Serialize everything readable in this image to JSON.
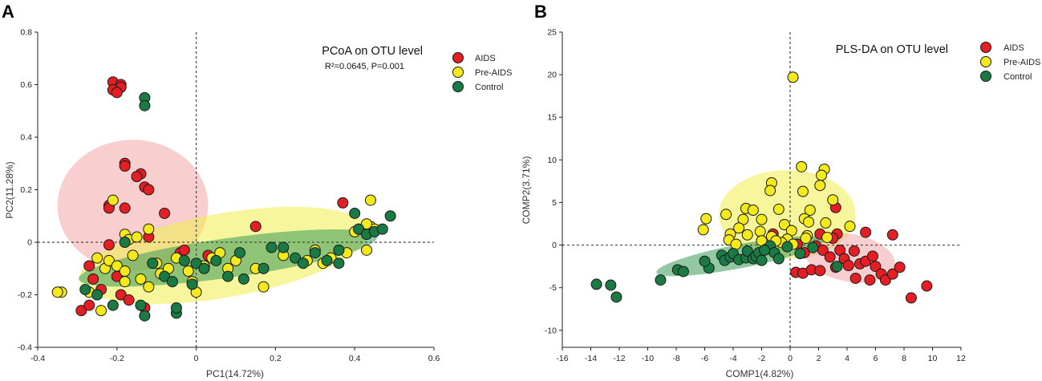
{
  "colors": {
    "AIDS": "#e31e25",
    "Pre-AIDS": "#f4e91a",
    "Control": "#1a7a43"
  },
  "ellipse_colors": {
    "AIDS": "#f4a6a6",
    "Pre-AIDS": "#f1ee4a",
    "Control": "#3a9a5a"
  },
  "chart_data": [
    {
      "panel": "A",
      "type": "scatter",
      "title": "PCoA on OTU level",
      "subtitle": "R²=0.0645, P=0.001",
      "xlabel": "PC1(14.72%)",
      "ylabel": "PC2(11.28%)",
      "xlim": [
        -0.4,
        0.6
      ],
      "ylim": [
        -0.4,
        0.8
      ],
      "xticks": [
        -0.4,
        -0.2,
        0,
        0.2,
        0.4,
        0.6
      ],
      "yticks": [
        -0.4,
        -0.2,
        0,
        0.2,
        0.4,
        0.6,
        0.8
      ],
      "xtick_labels": [
        "-0.4",
        "-0.2",
        "0",
        "0.2",
        "0.4",
        "0.6"
      ],
      "ytick_labels": [
        "-0.4",
        "-0.2",
        "0",
        "0.2",
        "0.4",
        "0.6",
        "0.8"
      ],
      "legend": [
        "AIDS",
        "Pre-AIDS",
        "Control"
      ],
      "legend_position": "top-right",
      "ellipses": [
        {
          "group": "AIDS",
          "cx": -0.16,
          "cy": 0.14,
          "rx": 0.19,
          "ry": 0.25,
          "angle": 0
        },
        {
          "group": "Pre-AIDS",
          "cx": 0.07,
          "cy": -0.05,
          "rx": 0.37,
          "ry": 0.16,
          "angle": 10
        },
        {
          "group": "Control",
          "cx": 0.08,
          "cy": -0.06,
          "rx": 0.38,
          "ry": 0.075,
          "angle": 8
        }
      ],
      "series": [
        {
          "name": "AIDS",
          "points": [
            [
              -0.21,
              0.61
            ],
            [
              -0.19,
              0.6
            ],
            [
              -0.19,
              0.59
            ],
            [
              -0.21,
              0.58
            ],
            [
              -0.2,
              0.57
            ],
            [
              -0.18,
              0.3
            ],
            [
              -0.18,
              0.29
            ],
            [
              -0.14,
              0.26
            ],
            [
              -0.15,
              0.25
            ],
            [
              -0.13,
              0.21
            ],
            [
              -0.12,
              0.2
            ],
            [
              -0.22,
              0.14
            ],
            [
              -0.18,
              0.13
            ],
            [
              -0.22,
              0.13
            ],
            [
              -0.08,
              0.11
            ],
            [
              -0.22,
              -0.01
            ],
            [
              -0.12,
              0.02
            ],
            [
              -0.04,
              -0.04
            ],
            [
              -0.03,
              -0.03
            ],
            [
              0.03,
              -0.05
            ],
            [
              0.15,
              0.06
            ],
            [
              0.37,
              0.15
            ],
            [
              -0.27,
              -0.09
            ],
            [
              -0.26,
              -0.14
            ],
            [
              -0.2,
              -0.13
            ],
            [
              -0.19,
              -0.2
            ],
            [
              -0.24,
              -0.18
            ],
            [
              -0.29,
              -0.26
            ],
            [
              -0.27,
              -0.24
            ],
            [
              -0.17,
              -0.22
            ],
            [
              -0.13,
              -0.25
            ]
          ]
        },
        {
          "name": "Pre-AIDS",
          "points": [
            [
              -0.21,
              0.16
            ],
            [
              -0.18,
              0.03
            ],
            [
              -0.17,
              0.01
            ],
            [
              -0.15,
              0.02
            ],
            [
              -0.12,
              0.05
            ],
            [
              -0.25,
              -0.06
            ],
            [
              -0.23,
              -0.1
            ],
            [
              -0.22,
              -0.07
            ],
            [
              -0.2,
              -0.09
            ],
            [
              -0.18,
              -0.11
            ],
            [
              -0.16,
              -0.05
            ],
            [
              -0.14,
              -0.14
            ],
            [
              -0.12,
              -0.17
            ],
            [
              -0.1,
              -0.08
            ],
            [
              -0.09,
              -0.12
            ],
            [
              -0.07,
              -0.1
            ],
            [
              -0.05,
              -0.06
            ],
            [
              -0.02,
              -0.11
            ],
            [
              -0.01,
              -0.15
            ],
            [
              0.0,
              -0.19
            ],
            [
              0.02,
              -0.09
            ],
            [
              0.04,
              -0.06
            ],
            [
              0.06,
              -0.04
            ],
            [
              0.08,
              -0.1
            ],
            [
              0.1,
              -0.07
            ],
            [
              -0.34,
              -0.19
            ],
            [
              -0.35,
              -0.19
            ],
            [
              -0.27,
              -0.19
            ],
            [
              -0.24,
              -0.26
            ],
            [
              -0.18,
              -0.15
            ],
            [
              0.15,
              -0.1
            ],
            [
              0.17,
              -0.17
            ],
            [
              0.22,
              -0.05
            ],
            [
              0.28,
              -0.07
            ],
            [
              0.3,
              -0.03
            ],
            [
              0.32,
              -0.08
            ],
            [
              0.34,
              -0.06
            ],
            [
              0.38,
              -0.04
            ],
            [
              0.4,
              0.04
            ],
            [
              0.42,
              0.05
            ],
            [
              0.44,
              0.06
            ],
            [
              0.45,
              0.05
            ],
            [
              0.43,
              -0.03
            ],
            [
              0.44,
              0.16
            ],
            [
              0.43,
              0.07
            ]
          ]
        },
        {
          "name": "Control",
          "points": [
            [
              -0.13,
              0.55
            ],
            [
              -0.13,
              0.52
            ],
            [
              -0.18,
              0.0
            ],
            [
              -0.11,
              -0.08
            ],
            [
              -0.08,
              -0.13
            ],
            [
              -0.06,
              -0.15
            ],
            [
              -0.01,
              -0.16
            ],
            [
              0.0,
              -0.08
            ],
            [
              0.05,
              -0.07
            ],
            [
              0.08,
              -0.13
            ],
            [
              0.11,
              -0.04
            ],
            [
              0.12,
              -0.14
            ],
            [
              0.17,
              -0.1
            ],
            [
              0.19,
              -0.02
            ],
            [
              0.22,
              -0.02
            ],
            [
              0.25,
              -0.06
            ],
            [
              0.27,
              -0.08
            ],
            [
              0.3,
              -0.04
            ],
            [
              0.33,
              -0.07
            ],
            [
              0.36,
              -0.08
            ],
            [
              0.41,
              0.05
            ],
            [
              0.43,
              0.03
            ],
            [
              0.45,
              0.04
            ],
            [
              0.47,
              0.05
            ],
            [
              0.49,
              0.1
            ],
            [
              0.4,
              0.11
            ],
            [
              0.36,
              -0.03
            ],
            [
              -0.28,
              -0.18
            ],
            [
              -0.25,
              -0.2
            ],
            [
              -0.21,
              -0.24
            ],
            [
              -0.14,
              -0.24
            ],
            [
              -0.13,
              -0.28
            ],
            [
              -0.05,
              -0.27
            ],
            [
              -0.05,
              -0.25
            ],
            [
              -0.03,
              -0.07
            ],
            [
              0.02,
              -0.1
            ]
          ]
        }
      ]
    },
    {
      "panel": "B",
      "type": "scatter",
      "title": "PLS-DA on OTU level",
      "xlabel": "COMP1(4.82%)",
      "ylabel": "COMP2(3.71%)",
      "xlim": [
        -16,
        12
      ],
      "ylim": [
        -12,
        25
      ],
      "xticks": [
        -16,
        -14,
        -12,
        -10,
        -8,
        -6,
        -4,
        -2,
        0,
        2,
        4,
        6,
        8,
        10,
        12
      ],
      "yticks": [
        -10,
        -5,
        0,
        5,
        10,
        15,
        20,
        25
      ],
      "xtick_labels": [
        "-16",
        "-14",
        "-12",
        "-10",
        "-8",
        "-6",
        "-4",
        "-2",
        "0",
        "2",
        "4",
        "6",
        "8",
        "10",
        "12"
      ],
      "ytick_labels": [
        "-10",
        "-5",
        "0",
        "5",
        "10",
        "15",
        "20",
        "25"
      ],
      "legend": [
        "AIDS",
        "Pre-AIDS",
        "Control"
      ],
      "legend_position": "top-right",
      "ellipses": [
        {
          "group": "Pre-AIDS",
          "cx": -0.2,
          "cy": 3.6,
          "rx": 4.8,
          "ry": 5.2,
          "angle": 0
        },
        {
          "group": "AIDS",
          "cx": 4.2,
          "cy": -1.5,
          "rx": 3.2,
          "ry": 2.8,
          "angle": -10
        },
        {
          "group": "Control",
          "cx": -3.5,
          "cy": -1.3,
          "rx": 6.0,
          "ry": 1.4,
          "angle": 11
        }
      ],
      "series": [
        {
          "name": "AIDS",
          "points": [
            [
              3.2,
              4.4
            ],
            [
              -1.2,
              1.3
            ],
            [
              2.1,
              1.3
            ],
            [
              3.3,
              1.3
            ],
            [
              3.0,
              0.8
            ],
            [
              5.3,
              1.5
            ],
            [
              7.2,
              1.2
            ],
            [
              1.8,
              -0.1
            ],
            [
              2.3,
              -0.6
            ],
            [
              2.8,
              -1.4
            ],
            [
              3.5,
              -0.6
            ],
            [
              3.8,
              -1.6
            ],
            [
              4.1,
              -2.4
            ],
            [
              4.5,
              -0.7
            ],
            [
              4.9,
              -2.2
            ],
            [
              5.3,
              -1.9
            ],
            [
              5.8,
              -1.3
            ],
            [
              6.0,
              -2.5
            ],
            [
              6.4,
              -3.4
            ],
            [
              6.7,
              -4.1
            ],
            [
              7.2,
              -3.4
            ],
            [
              7.7,
              -2.6
            ],
            [
              5.6,
              -4.1
            ],
            [
              4.6,
              -3.9
            ],
            [
              3.2,
              -2.6
            ],
            [
              0.4,
              -3.2
            ],
            [
              0.9,
              -3.3
            ],
            [
              1.5,
              -2.9
            ],
            [
              2.1,
              -3.0
            ],
            [
              9.6,
              -4.8
            ],
            [
              8.5,
              -6.2
            ],
            [
              1.0,
              -0.9
            ],
            [
              0.5,
              0.1
            ]
          ]
        },
        {
          "name": "Pre-AIDS",
          "points": [
            [
              0.2,
              19.7
            ],
            [
              0.8,
              9.2
            ],
            [
              2.4,
              8.9
            ],
            [
              2.2,
              8.2
            ],
            [
              2.1,
              7.0
            ],
            [
              -1.3,
              7.3
            ],
            [
              -1.4,
              6.4
            ],
            [
              0.9,
              6.3
            ],
            [
              3.0,
              5.3
            ],
            [
              -3.1,
              4.3
            ],
            [
              -2.6,
              4.1
            ],
            [
              -0.8,
              4.2
            ],
            [
              1.4,
              4.1
            ],
            [
              -4.5,
              3.6
            ],
            [
              -5.9,
              3.1
            ],
            [
              -2.0,
              3.0
            ],
            [
              -3.3,
              3.0
            ],
            [
              1.0,
              3.1
            ],
            [
              1.3,
              2.7
            ],
            [
              2.5,
              2.6
            ],
            [
              -0.4,
              2.4
            ],
            [
              4.2,
              2.2
            ],
            [
              -3.6,
              2.0
            ],
            [
              -6.1,
              1.8
            ],
            [
              0.1,
              1.7
            ],
            [
              -2.1,
              1.6
            ],
            [
              -4.2,
              1.3
            ],
            [
              -3.0,
              1.2
            ],
            [
              -1.3,
              1.0
            ],
            [
              1.2,
              1.1
            ],
            [
              -0.2,
              0.7
            ],
            [
              -4.3,
              0.6
            ],
            [
              -2.0,
              0.5
            ],
            [
              -0.6,
              0.3
            ],
            [
              -3.8,
              0.1
            ],
            [
              1.1,
              0.8
            ],
            [
              -1.0,
              0.5
            ],
            [
              2.6,
              0.9
            ],
            [
              0.2,
              0.1
            ]
          ]
        },
        {
          "name": "Control",
          "points": [
            [
              -13.6,
              -4.6
            ],
            [
              -12.6,
              -4.7
            ],
            [
              -12.2,
              -6.1
            ],
            [
              -9.1,
              -4.1
            ],
            [
              -7.9,
              -2.9
            ],
            [
              -7.5,
              -3.1
            ],
            [
              -5.7,
              -2.7
            ],
            [
              -6.0,
              -1.9
            ],
            [
              -4.8,
              -1.2
            ],
            [
              -4.6,
              -1.8
            ],
            [
              -4.2,
              -1.4
            ],
            [
              -4.0,
              -1.0
            ],
            [
              -3.6,
              -1.7
            ],
            [
              -3.1,
              -1.5
            ],
            [
              -3.0,
              -0.7
            ],
            [
              -2.6,
              -1.6
            ],
            [
              -2.4,
              -1.3
            ],
            [
              -2.2,
              -0.9
            ],
            [
              -1.7,
              -0.5
            ],
            [
              -1.4,
              -0.1
            ],
            [
              -1.1,
              -0.9
            ],
            [
              -0.8,
              -1.6
            ],
            [
              -2.0,
              -1.8
            ],
            [
              -0.2,
              -0.2
            ],
            [
              0.7,
              -1.0
            ],
            [
              1.6,
              -0.3
            ],
            [
              3.3,
              -2.5
            ],
            [
              -1.8,
              -0.6
            ]
          ]
        }
      ]
    }
  ]
}
